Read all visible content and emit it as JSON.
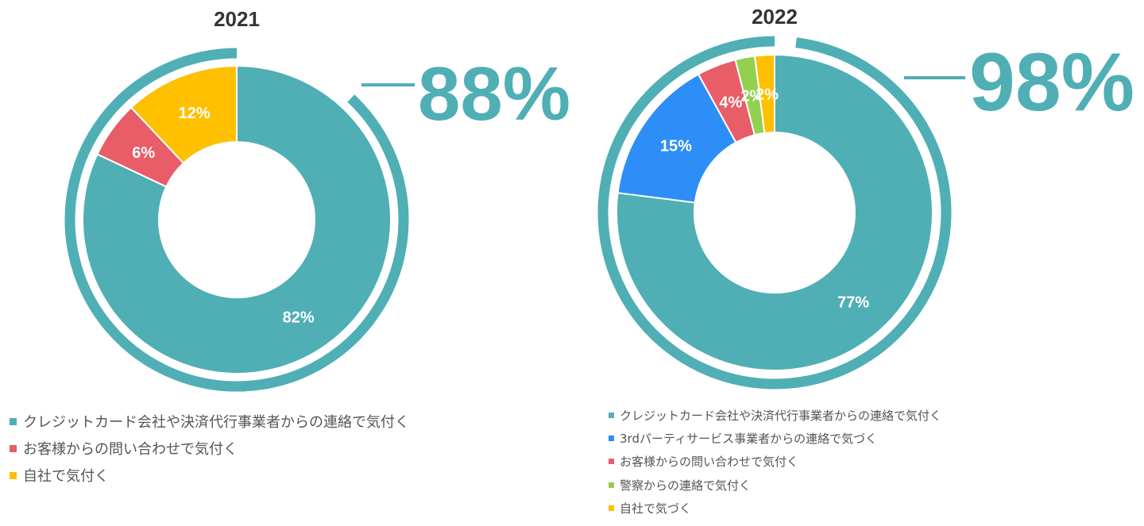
{
  "chart_data": [
    {
      "type": "pie",
      "title": "2021",
      "slices": [
        {
          "name": "クレジットカード会社や決済代行事業者からの連絡で気付く",
          "value": 82,
          "label": "82%",
          "color": "#4FAFB5"
        },
        {
          "name": "お客様からの問い合わせで気付く",
          "value": 6,
          "label": "6%",
          "color": "#E85D67"
        },
        {
          "name": "自社で気付く",
          "value": 12,
          "label": "12%",
          "color": "#FFC000"
        }
      ],
      "highlight": {
        "value": 88,
        "label": "88%",
        "color": "#4FAFB5"
      },
      "legend_placement": "bottom"
    },
    {
      "type": "pie",
      "title": "2022",
      "slices": [
        {
          "name": "クレジットカード会社や決済代行事業者からの連絡で気付く",
          "value": 77,
          "label": "77%",
          "color": "#4FAFB5"
        },
        {
          "name": "3rdパーティサービス事業者からの連絡で気づく",
          "value": 15,
          "label": "15%",
          "color": "#2E8EF7"
        },
        {
          "name": "お客様からの問い合わせで気付く",
          "value": 4,
          "label": "4%",
          "color": "#E85D67"
        },
        {
          "name": "警察からの連絡で気付く",
          "value": 2,
          "label": "2%",
          "color": "#92D050"
        },
        {
          "name": "自社で気づく",
          "value": 2,
          "label": "2%",
          "color": "#FFC000"
        }
      ],
      "highlight": {
        "value": 98,
        "label": "98%",
        "color": "#4FAFB5"
      },
      "legend_placement": "bottom"
    }
  ]
}
